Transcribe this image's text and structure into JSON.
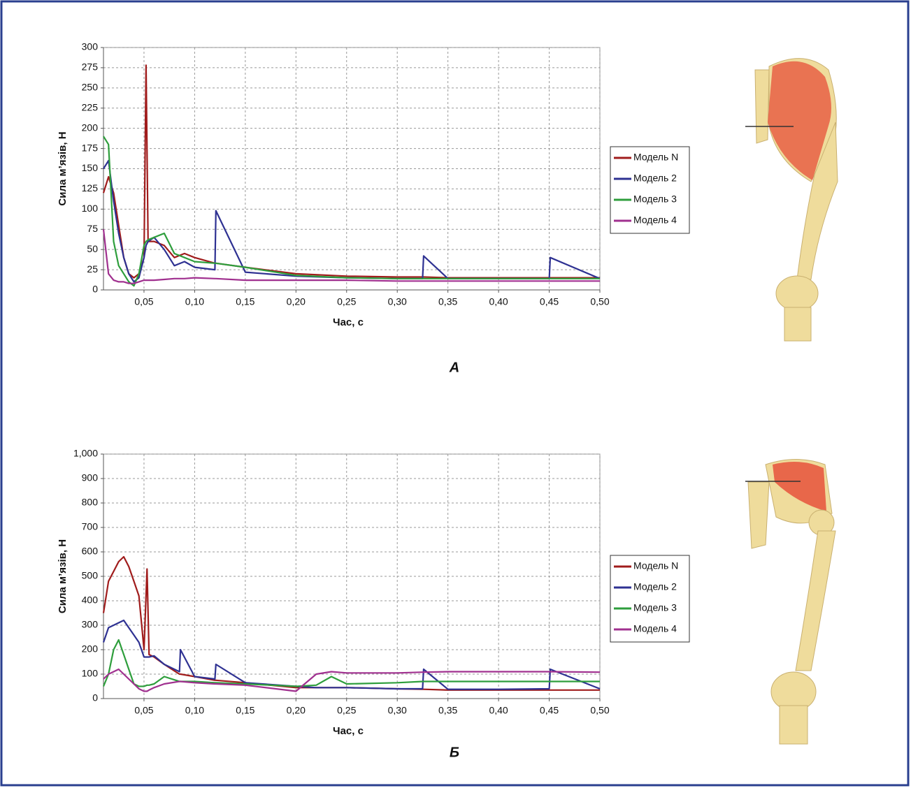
{
  "chart_data": [
    {
      "type": "line",
      "caption": "А",
      "xlabel": "Час, с",
      "ylabel": "Сила м’язів, Н",
      "x": [
        0.01,
        0.015,
        0.02,
        0.025,
        0.03,
        0.035,
        0.04,
        0.045,
        0.05,
        0.052,
        0.054,
        0.06,
        0.07,
        0.08,
        0.09,
        0.1,
        0.12,
        0.121,
        0.15,
        0.2,
        0.25,
        0.3,
        0.325,
        0.326,
        0.35,
        0.4,
        0.45,
        0.451,
        0.5
      ],
      "series": [
        {
          "name": "Модель N",
          "color": "#a01c1c",
          "values": [
            120,
            140,
            120,
            80,
            40,
            20,
            15,
            20,
            40,
            278,
            60,
            60,
            55,
            40,
            45,
            40,
            33,
            33,
            28,
            20,
            17,
            16,
            16,
            16,
            15,
            15,
            15,
            15,
            15
          ]
        },
        {
          "name": "Модель 2",
          "color": "#2e3192",
          "values": [
            150,
            160,
            110,
            70,
            40,
            20,
            10,
            15,
            40,
            55,
            60,
            65,
            50,
            30,
            35,
            28,
            25,
            98,
            22,
            17,
            15,
            14,
            14,
            42,
            14,
            14,
            14,
            40,
            14
          ]
        },
        {
          "name": "Модель 3",
          "color": "#2e9e3c",
          "values": [
            190,
            180,
            60,
            30,
            20,
            10,
            5,
            20,
            55,
            60,
            62,
            65,
            70,
            45,
            40,
            35,
            33,
            33,
            28,
            18,
            15,
            14,
            14,
            14,
            14,
            14,
            14,
            14,
            14
          ]
        },
        {
          "name": "Модель 4",
          "color": "#a0308f",
          "values": [
            75,
            20,
            12,
            10,
            10,
            8,
            8,
            10,
            12,
            12,
            12,
            12,
            13,
            14,
            14,
            15,
            14,
            14,
            12,
            12,
            12,
            11,
            11,
            11,
            11,
            11,
            11,
            11,
            11
          ]
        }
      ],
      "xlim": [
        0.01,
        0.5
      ],
      "xticks": [
        {
          "value": 0.05,
          "label": "0,05"
        },
        {
          "value": 0.1,
          "label": "0,10"
        },
        {
          "value": 0.15,
          "label": "0,15"
        },
        {
          "value": 0.2,
          "label": "0,20"
        },
        {
          "value": 0.25,
          "label": "0,25"
        },
        {
          "value": 0.3,
          "label": "0,30"
        },
        {
          "value": 0.35,
          "label": "0,35"
        },
        {
          "value": 0.4,
          "label": "0,40"
        },
        {
          "value": 0.45,
          "label": "0,45"
        },
        {
          "value": 0.5,
          "label": "0,50"
        }
      ],
      "ylim": [
        0,
        300
      ],
      "yticks": [
        0,
        25,
        50,
        75,
        100,
        125,
        150,
        175,
        200,
        225,
        250,
        275,
        300
      ],
      "grid": true,
      "legend": "right"
    },
    {
      "type": "line",
      "caption": "Б",
      "xlabel": "Час, с",
      "ylabel": "Сила м’язів, Н",
      "x": [
        0.01,
        0.015,
        0.02,
        0.025,
        0.03,
        0.035,
        0.04,
        0.045,
        0.05,
        0.053,
        0.055,
        0.06,
        0.07,
        0.085,
        0.086,
        0.1,
        0.12,
        0.121,
        0.15,
        0.2,
        0.22,
        0.235,
        0.25,
        0.3,
        0.325,
        0.326,
        0.35,
        0.4,
        0.45,
        0.451,
        0.5
      ],
      "series": [
        {
          "name": "Модель N",
          "color": "#a01c1c",
          "values": [
            350,
            480,
            520,
            560,
            580,
            540,
            480,
            420,
            200,
            530,
            180,
            170,
            140,
            100,
            100,
            90,
            75,
            75,
            65,
            45,
            45,
            45,
            45,
            40,
            38,
            38,
            35,
            35,
            35,
            35,
            35
          ]
        },
        {
          "name": "Модель 2",
          "color": "#2e3192",
          "values": [
            230,
            290,
            300,
            310,
            320,
            290,
            260,
            230,
            170,
            170,
            170,
            175,
            140,
            110,
            200,
            90,
            80,
            140,
            65,
            50,
            45,
            45,
            45,
            40,
            40,
            120,
            38,
            38,
            40,
            120,
            40
          ]
        },
        {
          "name": "Модель 3",
          "color": "#2e9e3c",
          "values": [
            50,
            100,
            200,
            240,
            180,
            120,
            60,
            50,
            50,
            55,
            55,
            60,
            90,
            70,
            70,
            70,
            65,
            65,
            60,
            50,
            55,
            90,
            60,
            65,
            70,
            70,
            70,
            70,
            70,
            70,
            70
          ]
        },
        {
          "name": "Модель 4",
          "color": "#a0308f",
          "values": [
            80,
            100,
            110,
            120,
            100,
            80,
            60,
            40,
            30,
            30,
            35,
            45,
            60,
            70,
            70,
            65,
            60,
            60,
            55,
            30,
            100,
            110,
            105,
            105,
            108,
            108,
            110,
            110,
            110,
            110,
            108
          ]
        }
      ],
      "xlim": [
        0.01,
        0.5
      ],
      "xticks": [
        {
          "value": 0.05,
          "label": "0,05"
        },
        {
          "value": 0.1,
          "label": "0,10"
        },
        {
          "value": 0.15,
          "label": "0,15"
        },
        {
          "value": 0.2,
          "label": "0,20"
        },
        {
          "value": 0.25,
          "label": "0,25"
        },
        {
          "value": 0.3,
          "label": "0,30"
        },
        {
          "value": 0.35,
          "label": "0,35"
        },
        {
          "value": 0.4,
          "label": "0,40"
        },
        {
          "value": 0.45,
          "label": "0,45"
        },
        {
          "value": 0.5,
          "label": "0,50"
        }
      ],
      "ylim": [
        0,
        1000
      ],
      "yticks": [
        0,
        100,
        200,
        300,
        400,
        500,
        600,
        700,
        800,
        900,
        {
          "value": 1000,
          "label": "1,000"
        }
      ],
      "grid": true,
      "legend": "right"
    }
  ]
}
